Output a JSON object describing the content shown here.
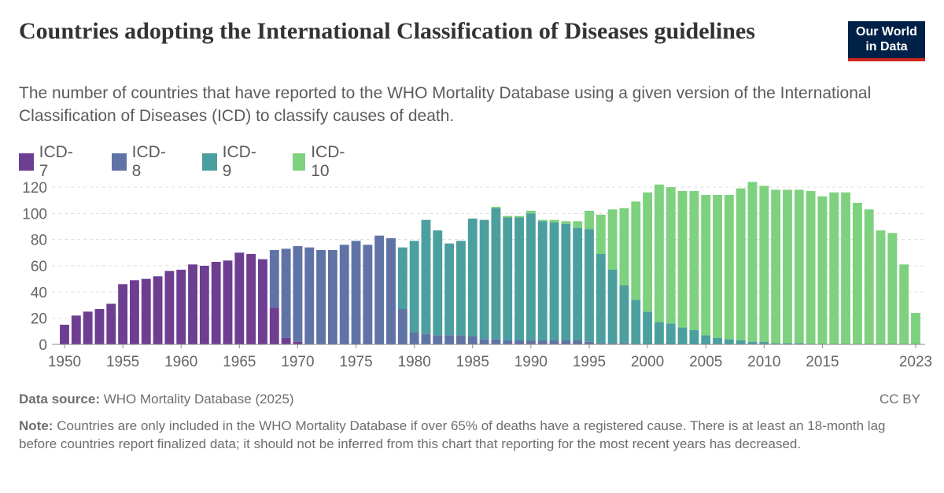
{
  "header": {
    "title": "Countries adopting the International Classification of Diseases guidelines",
    "subtitle": "The number of countries that have reported to the WHO Mortality Database using a given version of the International Classification of Diseases (ICD) to classify causes of death.",
    "logo_line1": "Our World",
    "logo_line2": "in Data"
  },
  "footer": {
    "source_label": "Data source:",
    "source_text": "WHO Mortality Database (2025)",
    "license": "CC BY",
    "note_label": "Note:",
    "note_text": "Countries are only included in the WHO Mortality Database if over 65% of deaths have a registered cause. There is at least an 18-month lag before countries report finalized data; it should not be inferred from this chart that reporting for the most recent years has decreased."
  },
  "chart_data": {
    "type": "bar",
    "stacked": true,
    "title": "Countries adopting the International Classification of Diseases guidelines",
    "xlabel": "",
    "ylabel": "",
    "ylim": [
      0,
      120
    ],
    "yticks": [
      0,
      20,
      40,
      60,
      80,
      100,
      120
    ],
    "xticks": [
      1950,
      1955,
      1960,
      1965,
      1970,
      1975,
      1980,
      1985,
      1990,
      1995,
      2000,
      2005,
      2010,
      2015,
      2023
    ],
    "grid": true,
    "legend_position": "top-left",
    "x": [
      1950,
      1951,
      1952,
      1953,
      1954,
      1955,
      1956,
      1957,
      1958,
      1959,
      1960,
      1961,
      1962,
      1963,
      1964,
      1965,
      1966,
      1967,
      1968,
      1969,
      1970,
      1971,
      1972,
      1973,
      1974,
      1975,
      1976,
      1977,
      1978,
      1979,
      1980,
      1981,
      1982,
      1983,
      1984,
      1985,
      1986,
      1987,
      1988,
      1989,
      1990,
      1991,
      1992,
      1993,
      1994,
      1995,
      1996,
      1997,
      1998,
      1999,
      2000,
      2001,
      2002,
      2003,
      2004,
      2005,
      2006,
      2007,
      2008,
      2009,
      2010,
      2011,
      2012,
      2013,
      2014,
      2015,
      2016,
      2017,
      2018,
      2019,
      2020,
      2021,
      2022,
      2023
    ],
    "series": [
      {
        "name": "ICD-7",
        "color": "#6d3e91",
        "values": [
          15,
          22,
          25,
          27,
          31,
          46,
          49,
          50,
          52,
          56,
          57,
          61,
          60,
          63,
          64,
          70,
          69,
          65,
          28,
          5,
          2,
          0,
          0,
          0,
          0,
          0,
          0,
          0,
          0,
          0,
          0,
          0,
          0,
          0,
          0,
          0,
          0,
          0,
          0,
          0,
          0,
          0,
          0,
          0,
          0,
          0,
          0,
          0,
          0,
          0,
          0,
          0,
          0,
          0,
          0,
          0,
          0,
          0,
          0,
          0,
          0,
          0,
          0,
          0,
          0,
          0,
          0,
          0,
          0,
          0,
          0,
          0,
          0,
          0
        ]
      },
      {
        "name": "ICD-8",
        "color": "#6073a6",
        "values": [
          0,
          0,
          0,
          0,
          0,
          0,
          0,
          0,
          0,
          0,
          0,
          0,
          0,
          0,
          0,
          0,
          0,
          0,
          44,
          68,
          73,
          74,
          72,
          72,
          76,
          79,
          76,
          83,
          81,
          27,
          9,
          8,
          7,
          7,
          7,
          6,
          4,
          4,
          3,
          3,
          3,
          3,
          3,
          3,
          3,
          2,
          1,
          1,
          1,
          0,
          0,
          0,
          0,
          0,
          0,
          0,
          0,
          0,
          0,
          0,
          0,
          0,
          0,
          0,
          0,
          0,
          0,
          0,
          0,
          0,
          0,
          0,
          0,
          0
        ]
      },
      {
        "name": "ICD-9",
        "color": "#4c9f9f",
        "values": [
          0,
          0,
          0,
          0,
          0,
          0,
          0,
          0,
          0,
          0,
          0,
          0,
          0,
          0,
          0,
          0,
          0,
          0,
          0,
          0,
          0,
          0,
          0,
          0,
          0,
          0,
          0,
          0,
          0,
          47,
          70,
          87,
          80,
          70,
          72,
          90,
          91,
          100,
          94,
          94,
          97,
          91,
          90,
          89,
          86,
          86,
          68,
          56,
          44,
          34,
          25,
          17,
          16,
          13,
          11,
          7,
          5,
          4,
          3,
          2,
          2,
          1,
          1,
          1,
          0,
          0,
          0,
          0,
          0,
          0,
          0,
          0,
          0,
          0
        ]
      },
      {
        "name": "ICD-10",
        "color": "#7ed17e",
        "values": [
          0,
          0,
          0,
          0,
          0,
          0,
          0,
          0,
          0,
          0,
          0,
          0,
          0,
          0,
          0,
          0,
          0,
          0,
          0,
          0,
          0,
          0,
          0,
          0,
          0,
          0,
          0,
          0,
          0,
          0,
          0,
          0,
          0,
          0,
          0,
          0,
          0,
          1,
          1,
          1,
          2,
          1,
          2,
          2,
          5,
          14,
          30,
          46,
          59,
          75,
          91,
          105,
          104,
          104,
          106,
          107,
          109,
          110,
          116,
          122,
          119,
          117,
          117,
          117,
          117,
          113,
          116,
          116,
          108,
          103,
          87,
          85,
          61,
          24
        ]
      }
    ]
  }
}
